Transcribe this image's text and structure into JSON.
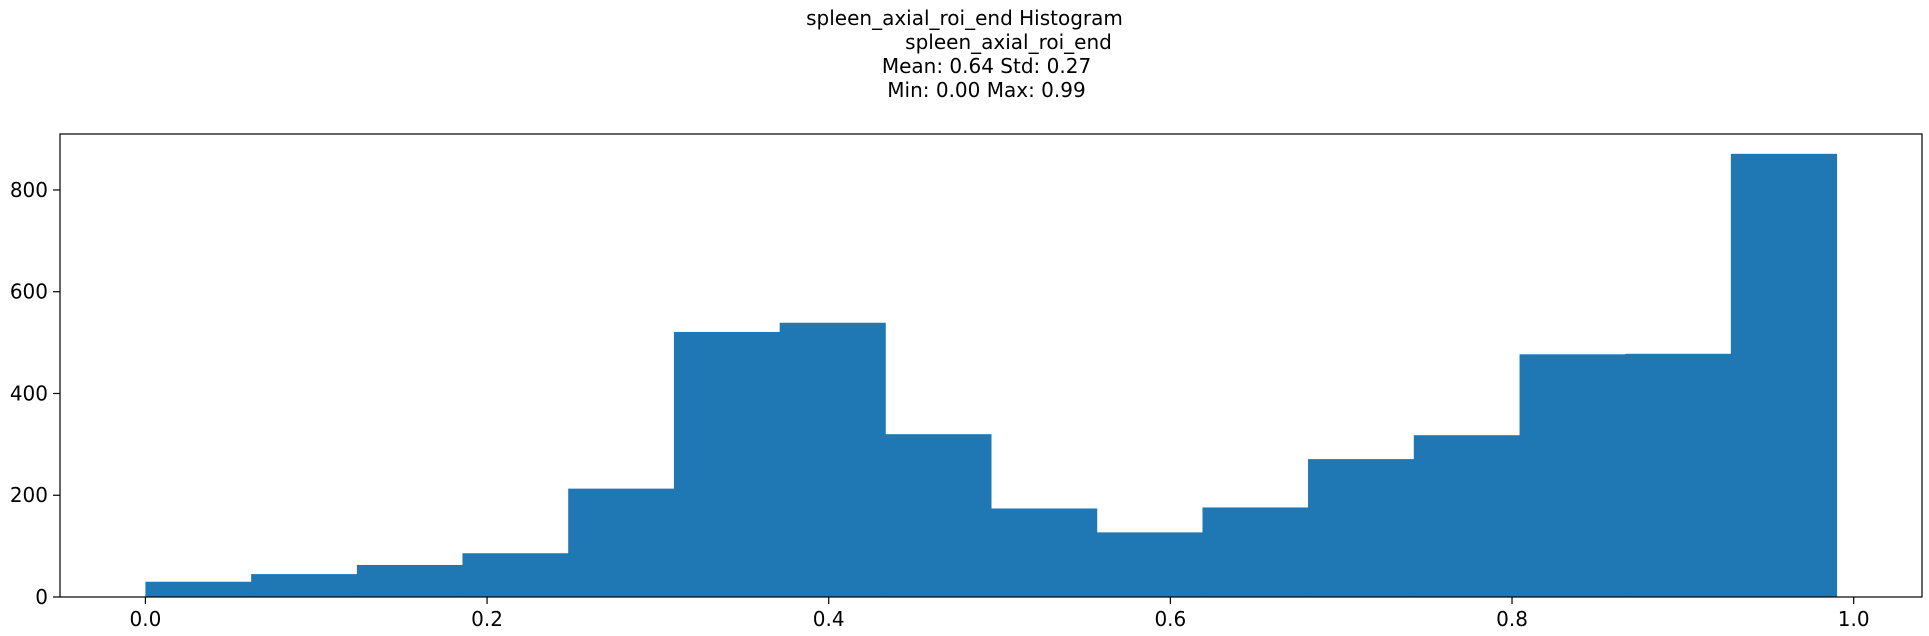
{
  "chart_data": {
    "type": "bar",
    "title_lines": [
      "spleen_axial_roi_end Histogram",
      "spleen_axial_roi_end",
      "Mean: 0.64 Std: 0.27",
      "Min: 0.00 Max: 0.99"
    ],
    "xlabel": "",
    "ylabel": "",
    "xlim": [
      -0.05,
      1.04
    ],
    "ylim": [
      0,
      910
    ],
    "x_ticks": [
      0.0,
      0.2,
      0.4,
      0.6,
      0.8,
      1.0
    ],
    "x_tick_labels": [
      "0.0",
      "0.2",
      "0.4",
      "0.6",
      "0.8",
      "1.0"
    ],
    "y_ticks": [
      0,
      200,
      400,
      600,
      800
    ],
    "y_tick_labels": [
      "0",
      "200",
      "400",
      "600",
      "800"
    ],
    "bin_edges": [
      0.0,
      0.0619,
      0.1238,
      0.1856,
      0.2475,
      0.3094,
      0.3713,
      0.4331,
      0.495,
      0.5569,
      0.6188,
      0.6806,
      0.7425,
      0.8044,
      0.8663,
      0.9281,
      0.99
    ],
    "values": [
      30,
      45,
      63,
      86,
      213,
      521,
      539,
      320,
      174,
      127,
      176,
      271,
      318,
      477,
      478,
      871
    ],
    "bar_color": "#1f77b4",
    "grid": false,
    "legend": "none"
  }
}
